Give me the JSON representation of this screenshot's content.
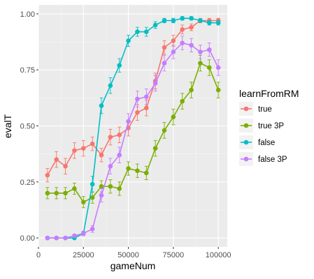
{
  "chart_data": {
    "type": "line",
    "xlabel": "gameNum",
    "ylabel": "evalT",
    "xlim": [
      0,
      105000
    ],
    "ylim": [
      -0.04,
      1.04
    ],
    "x_ticks": [
      0,
      25000,
      50000,
      75000,
      100000
    ],
    "x_tick_labels": [
      "0",
      "25000",
      "50000",
      "75000",
      "100000"
    ],
    "y_ticks": [
      0.0,
      0.25,
      0.5,
      0.75,
      1.0
    ],
    "y_tick_labels": [
      "0.00",
      "0.25",
      "0.50",
      "0.75",
      "1.00"
    ],
    "grid": true,
    "legend": {
      "title": "learnFromRM",
      "placement": "right"
    },
    "x": [
      5000,
      10000,
      15000,
      20000,
      25000,
      30000,
      35000,
      40000,
      45000,
      50000,
      55000,
      60000,
      65000,
      70000,
      75000,
      80000,
      85000,
      90000,
      95000,
      100000
    ],
    "series": [
      {
        "name": "true",
        "color": "#F8766D",
        "values": [
          0.28,
          0.35,
          0.32,
          0.39,
          0.4,
          0.42,
          0.37,
          0.45,
          0.46,
          0.49,
          0.56,
          0.58,
          0.7,
          0.85,
          0.88,
          0.93,
          0.94,
          0.97,
          0.97,
          0.97
        ],
        "errors": [
          0.03,
          0.035,
          0.035,
          0.035,
          0.035,
          0.03,
          0.03,
          0.035,
          0.035,
          0.035,
          0.035,
          0.035,
          0.035,
          0.03,
          0.025,
          0.02,
          0.015,
          0.01,
          0.01,
          0.01
        ]
      },
      {
        "name": "true 3P",
        "color": "#7CAE00",
        "values": [
          0.2,
          0.2,
          0.2,
          0.22,
          0.16,
          0.18,
          0.23,
          0.23,
          0.22,
          0.31,
          0.3,
          0.29,
          0.4,
          0.48,
          0.54,
          0.61,
          0.66,
          0.78,
          0.76,
          0.66
        ],
        "errors": [
          0.025,
          0.025,
          0.025,
          0.025,
          0.025,
          0.025,
          0.025,
          0.03,
          0.03,
          0.03,
          0.03,
          0.03,
          0.035,
          0.035,
          0.035,
          0.035,
          0.035,
          0.035,
          0.035,
          0.035
        ]
      },
      {
        "name": "false",
        "color": "#00BFC4",
        "values": [
          0.0,
          0.0,
          0.0,
          0.0,
          0.02,
          0.24,
          0.59,
          0.68,
          0.77,
          0.88,
          0.92,
          0.92,
          0.95,
          0.97,
          0.97,
          0.98,
          0.98,
          0.97,
          0.96,
          0.96
        ],
        "errors": [
          0.002,
          0.002,
          0.002,
          0.002,
          0.01,
          0.035,
          0.035,
          0.035,
          0.03,
          0.025,
          0.02,
          0.02,
          0.015,
          0.01,
          0.01,
          0.008,
          0.008,
          0.008,
          0.01,
          0.01
        ]
      },
      {
        "name": "false 3P",
        "color": "#C77CFF",
        "values": [
          0.0,
          0.0,
          0.0,
          0.01,
          0.02,
          0.04,
          0.19,
          0.32,
          0.37,
          0.52,
          0.62,
          0.63,
          0.69,
          0.78,
          0.83,
          0.87,
          0.86,
          0.83,
          0.84,
          0.76
        ],
        "errors": [
          0.002,
          0.002,
          0.002,
          0.005,
          0.01,
          0.015,
          0.03,
          0.035,
          0.035,
          0.035,
          0.035,
          0.035,
          0.035,
          0.035,
          0.03,
          0.03,
          0.03,
          0.03,
          0.03,
          0.035
        ]
      }
    ]
  }
}
